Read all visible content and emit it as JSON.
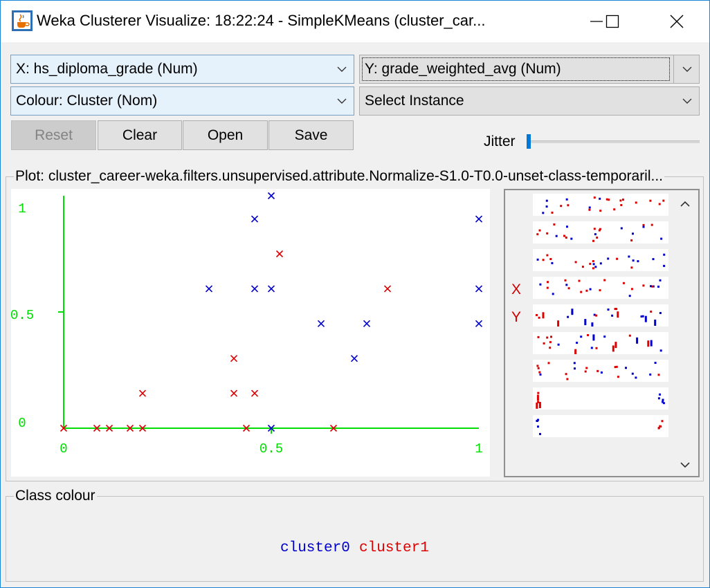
{
  "window": {
    "title": "Weka Clusterer Visualize: 18:22:24 - SimpleKMeans (cluster_car..."
  },
  "controls": {
    "x_axis": "X: hs_diploma_grade (Num)",
    "y_axis": "Y: grade_weighted_avg (Num)",
    "colour": "Colour: Cluster (Nom)",
    "select_instance": "Select Instance",
    "reset": "Reset",
    "clear": "Clear",
    "open": "Open",
    "save": "Save",
    "jitter_label": "Jitter",
    "jitter_value": 0
  },
  "plot": {
    "title": "Plot: cluster_career-weka.filters.unsupervised.attribute.Normalize-S1.0-T0.0-unset-class-temporaril...",
    "side_x_label": "X",
    "side_y_label": "Y"
  },
  "chart_data": {
    "type": "scatter",
    "x_ticks": [
      "0",
      "0.5",
      "1"
    ],
    "y_ticks": [
      "0",
      "0.5",
      "1"
    ],
    "xlim": [
      0,
      1
    ],
    "ylim": [
      0,
      1
    ],
    "series": [
      {
        "name": "cluster0",
        "color": "#0000cc",
        "points": [
          [
            0.5,
            1.0
          ],
          [
            0.46,
            0.9
          ],
          [
            1.0,
            0.9
          ],
          [
            0.35,
            0.6
          ],
          [
            0.46,
            0.6
          ],
          [
            0.5,
            0.6
          ],
          [
            1.0,
            0.6
          ],
          [
            0.62,
            0.45
          ],
          [
            0.73,
            0.45
          ],
          [
            1.0,
            0.45
          ],
          [
            0.7,
            0.3
          ],
          [
            0.5,
            0.0
          ]
        ]
      },
      {
        "name": "cluster1",
        "color": "#dd0000",
        "points": [
          [
            0.52,
            0.75
          ],
          [
            0.78,
            0.6
          ],
          [
            0.41,
            0.3
          ],
          [
            0.19,
            0.15
          ],
          [
            0.41,
            0.15
          ],
          [
            0.46,
            0.15
          ],
          [
            0.0,
            0.0
          ],
          [
            0.08,
            0.0
          ],
          [
            0.11,
            0.0
          ],
          [
            0.16,
            0.0
          ],
          [
            0.19,
            0.0
          ],
          [
            0.44,
            0.0
          ],
          [
            0.65,
            0.0
          ]
        ]
      }
    ]
  },
  "legend": {
    "title": "Class colour",
    "items": [
      {
        "label": "cluster0",
        "color": "#0000cc"
      },
      {
        "label": "cluster1",
        "color": "#dd0000"
      }
    ]
  },
  "icons": {
    "app": "java-cup-icon",
    "minimize": "minimize-icon",
    "maximize": "maximize-icon",
    "close": "close-icon",
    "dropdown": "chevron-down-icon",
    "scroll_up": "scroll-up-icon",
    "scroll_down": "scroll-down-icon"
  }
}
